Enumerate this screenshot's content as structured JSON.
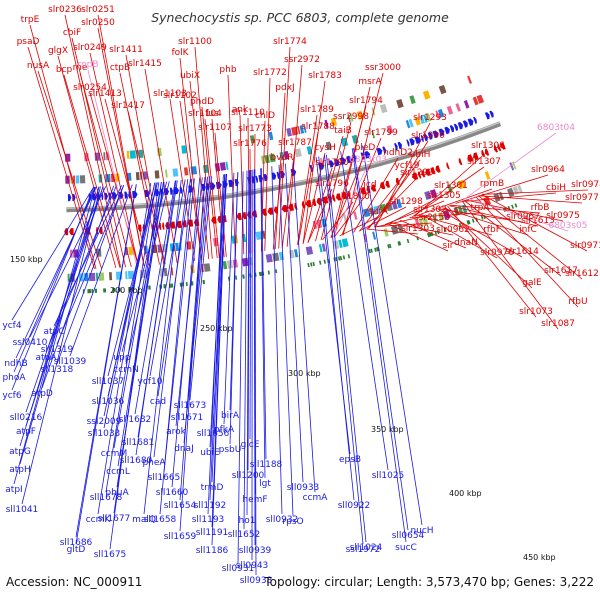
{
  "title": "Synechocystis sp. PCC 6803, complete genome",
  "footer": {
    "accession": "Accession: NC_000911",
    "topology": "Topology: circular; Length: 3,573,470 bp; Genes: 3,222"
  },
  "kbp_labels": [
    "150 kbp",
    "200 kbp",
    "250 kbp",
    "300 kbp",
    "350 kbp",
    "400 kbp",
    "450 kbp"
  ],
  "colors": {
    "plus_strand": "#e00000",
    "minus_strand": "#1a1ae6",
    "rna_label": "#ee88cc",
    "backbone": "#888888"
  },
  "labels_red": [
    "trpE",
    "slr0236",
    "slr0251",
    "psaD",
    "cbiF",
    "slr0250",
    "nusA",
    "glgX",
    "slr0249",
    "bcp",
    "rne",
    "slr0254",
    "ctpB",
    "slr1411",
    "slr1413",
    "slr1415",
    "slr1417",
    "folK",
    "slr1100",
    "ubiX",
    "slr1103",
    "phdD",
    "fus",
    "slr1102",
    "slr1104",
    "phb",
    "slr1107",
    "slr1110",
    "ank",
    "slr1774",
    "ssr2972",
    "slr1772",
    "slr1783",
    "pdxJ",
    "slr1773",
    "chlD",
    "slr1776",
    "slr1789",
    "slr1787",
    "slr1788",
    "bvdR",
    "taiB",
    "cysH",
    "slr1790",
    "slr1796",
    "ssr3000",
    "msrA",
    "slr1794",
    "ssr2998",
    "slr1799",
    "pleD",
    "slr1800",
    "icd",
    "ndhD2",
    "ycf19",
    "sufA",
    "slr1293",
    "slr1290",
    "ubiH",
    "slr1299",
    "slr1298",
    "slr1301",
    "slr1302",
    "slr1303",
    "ssr2153",
    "slr1305",
    "slr1306",
    "slr1307",
    "rpmB",
    "slr0962",
    "sir",
    "dnaN",
    "trpA",
    "slr0964",
    "cbiH",
    "slr0967",
    "rfbB",
    "slr0978",
    "slr0977",
    "slr0975",
    "infC",
    "rfbF",
    "slr1613",
    "slr0971",
    "slr0976",
    "slr1614",
    "slr1617",
    "slr1612",
    "galE",
    "rfbU",
    "slr1073",
    "slr1087"
  ],
  "labels_rna": [
    "rnpB",
    "6803t03",
    "6803t04",
    "6803s05"
  ],
  "labels_blue": [
    "ycf4",
    "ssl0410",
    "atpC",
    "sll1319",
    "ndhB",
    "atpA",
    "sll1039",
    "phoA",
    "sll1318",
    "ycf6",
    "atpD",
    "sll0216",
    "atpF",
    "atpG",
    "atpH",
    "atpI",
    "sll1041",
    "upp",
    "ccmN",
    "sll1037",
    "ycf10",
    "sll1036",
    "cad",
    "ssl2009",
    "sll1682",
    "sll1673",
    "sll1671",
    "sll1033",
    "sll1681",
    "arok",
    "sll1656",
    "birA",
    "ccmM",
    "dnaJ",
    "ccmL",
    "sll1680",
    "phuA",
    "pheA",
    "ubiE",
    "pfkA",
    "psbU",
    "glcE",
    "ccmK",
    "sll1665",
    "sll1660",
    "trmD",
    "sll1200",
    "sll1188",
    "lgt",
    "ccmA",
    "epsB",
    "gltD",
    "sll1678",
    "sll1654",
    "sll1192",
    "hemF",
    "sll0933",
    "sll1677",
    "malQ",
    "sll1658",
    "sll1193",
    "ho1",
    "sll0932",
    "rpsO",
    "sll0922",
    "sll1025",
    "sll1686",
    "sll1675",
    "sll1659",
    "sll1652",
    "sll1191",
    "sll1186",
    "sll0939",
    "sll0943",
    "sll0931",
    "sll0938",
    "ssl1972",
    "sll0654",
    "sll1024",
    "nucH",
    "sucC"
  ]
}
